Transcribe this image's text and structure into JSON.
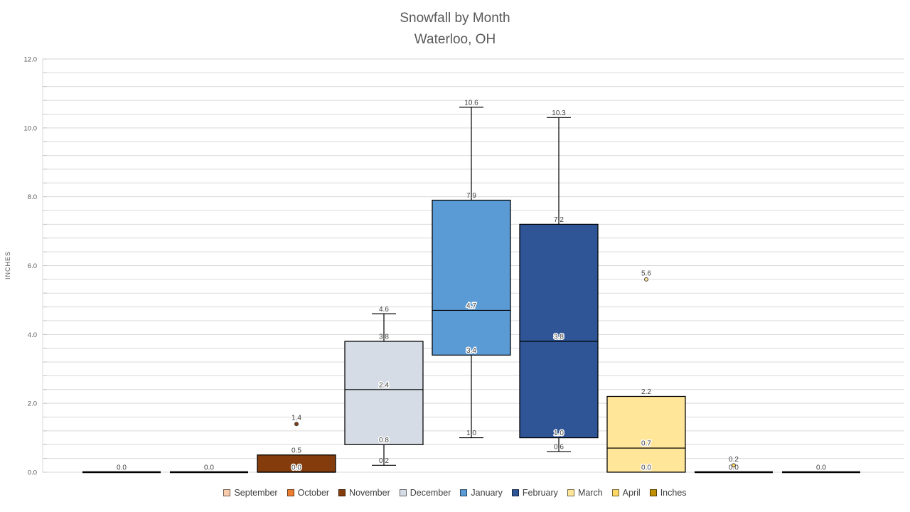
{
  "chart_data": {
    "type": "boxplot",
    "title": "Snowfall by Month",
    "subtitle": "Waterloo, OH",
    "ylabel": "INCHES",
    "ylim": [
      0,
      12
    ],
    "ytick_major": 2.0,
    "ytick_minor": 0.4,
    "ytick_values": [
      0,
      2,
      4,
      6,
      8,
      10,
      12
    ],
    "ytick_labels": [
      "0.0",
      "2.0",
      "4.0",
      "6.0",
      "8.0",
      "10.0",
      "12.0"
    ],
    "grid": true,
    "legend_position": "bottom",
    "series": [
      {
        "name": "September",
        "color": "#F8CBAD",
        "min": 0.0,
        "q1": 0.0,
        "median": 0.0,
        "q3": 0.0,
        "max": 0.0,
        "outliers": []
      },
      {
        "name": "October",
        "color": "#ED7D31",
        "min": 0.0,
        "q1": 0.0,
        "median": 0.0,
        "q3": 0.0,
        "max": 0.0,
        "outliers": []
      },
      {
        "name": "November",
        "color": "#843C0C",
        "min": 0.0,
        "q1": 0.0,
        "median": 0.0,
        "q3": 0.5,
        "max": 0.5,
        "outliers": [
          1.4
        ]
      },
      {
        "name": "December",
        "color": "#D6DCE5",
        "min": 0.2,
        "q1": 0.8,
        "median": 2.4,
        "q3": 3.8,
        "max": 4.6,
        "outliers": []
      },
      {
        "name": "January",
        "color": "#5B9BD5",
        "min": 1.0,
        "q1": 3.4,
        "median": 4.7,
        "q3": 7.9,
        "max": 10.6,
        "outliers": []
      },
      {
        "name": "February",
        "color": "#2F5597",
        "min": 0.6,
        "q1": 1.0,
        "median": 3.8,
        "q3": 7.2,
        "max": 10.3,
        "outliers": []
      },
      {
        "name": "March",
        "color": "#FFE699",
        "min": 0.0,
        "q1": 0.0,
        "median": 0.7,
        "q3": 2.2,
        "max": 2.2,
        "outliers": [
          5.6
        ]
      },
      {
        "name": "April",
        "color": "#FFD966",
        "min": 0.0,
        "q1": 0.0,
        "median": 0.0,
        "q3": 0.0,
        "max": 0.0,
        "outliers": [
          0.2
        ]
      },
      {
        "name": "Inches",
        "color": "#BF8F00",
        "min": 0.0,
        "q1": 0.0,
        "median": 0.0,
        "q3": 0.0,
        "max": 0.0,
        "outliers": []
      }
    ]
  },
  "colors": {
    "title_text": "#595959",
    "axis_text": "#595959",
    "value_label_text": "#404040",
    "legend_text": "#404040",
    "gridline": "#D9D9D9",
    "axis_line": "#D9D9D9",
    "tick_mark": "#C6C6C6",
    "box_border": "#000000",
    "background": "#FFFFFF"
  }
}
